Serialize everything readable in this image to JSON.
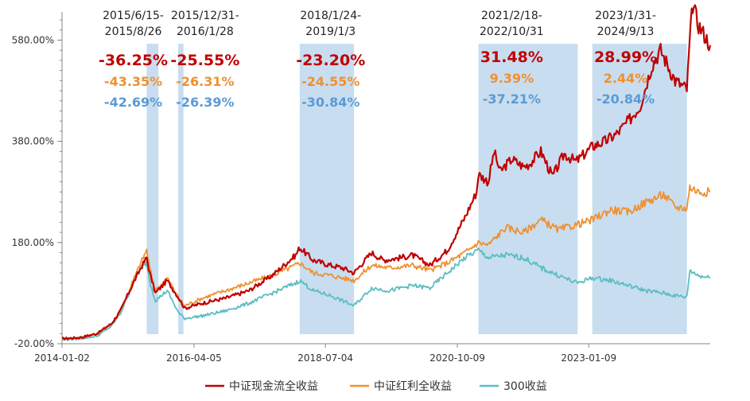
{
  "chart_data": {
    "type": "line",
    "title": "",
    "xlabel": "",
    "ylabel": "",
    "ylim": [
      -20,
      620
    ],
    "y_ticks": [
      {
        "value": -20,
        "label": "-20.00%"
      },
      {
        "value": 180,
        "label": "180.00%"
      },
      {
        "value": 380,
        "label": "380.00%"
      },
      {
        "value": 580,
        "label": "580.00%"
      }
    ],
    "x_range": [
      2014.0,
      2025.1
    ],
    "x_ticks": [
      {
        "value": 2014.0,
        "label": "2014-01-02"
      },
      {
        "value": 2016.26,
        "label": "2016-04-05"
      },
      {
        "value": 2018.51,
        "label": "2018-07-04"
      },
      {
        "value": 2020.77,
        "label": "2020-10-09"
      },
      {
        "value": 2023.02,
        "label": "2023-01-09"
      }
    ],
    "colors": {
      "red": "#C00000",
      "orange": "#F0902E",
      "teal": "#5BBDC2",
      "band": "#C8DDF0",
      "blue_text": "#5B9BD5"
    },
    "legend_position": "bottom",
    "series": [
      {
        "name": "中证现金流全收益",
        "color": "#C00000",
        "points": [
          [
            2014.0,
            -10
          ],
          [
            2014.3,
            -8
          ],
          [
            2014.6,
            0
          ],
          [
            2014.85,
            20
          ],
          [
            2015.0,
            45
          ],
          [
            2015.2,
            95
          ],
          [
            2015.35,
            130
          ],
          [
            2015.45,
            150
          ],
          [
            2015.5,
            120
          ],
          [
            2015.6,
            80
          ],
          [
            2015.8,
            105
          ],
          [
            2016.0,
            70
          ],
          [
            2016.1,
            50
          ],
          [
            2016.4,
            60
          ],
          [
            2016.8,
            70
          ],
          [
            2017.2,
            85
          ],
          [
            2017.6,
            115
          ],
          [
            2018.0,
            155
          ],
          [
            2018.07,
            170
          ],
          [
            2018.3,
            145
          ],
          [
            2018.6,
            135
          ],
          [
            2018.8,
            130
          ],
          [
            2019.0,
            120
          ],
          [
            2019.3,
            160
          ],
          [
            2019.5,
            145
          ],
          [
            2019.8,
            150
          ],
          [
            2020.0,
            155
          ],
          [
            2020.3,
            135
          ],
          [
            2020.6,
            165
          ],
          [
            2020.9,
            230
          ],
          [
            2021.1,
            280
          ],
          [
            2021.13,
            315
          ],
          [
            2021.3,
            300
          ],
          [
            2021.4,
            360
          ],
          [
            2021.5,
            320
          ],
          [
            2021.7,
            345
          ],
          [
            2021.9,
            330
          ],
          [
            2022.0,
            335
          ],
          [
            2022.2,
            360
          ],
          [
            2022.4,
            310
          ],
          [
            2022.6,
            355
          ],
          [
            2022.8,
            340
          ],
          [
            2022.9,
            350
          ],
          [
            2023.08,
            370
          ],
          [
            2023.3,
            380
          ],
          [
            2023.5,
            395
          ],
          [
            2023.7,
            420
          ],
          [
            2023.9,
            450
          ],
          [
            2024.1,
            530
          ],
          [
            2024.25,
            560
          ],
          [
            2024.5,
            500
          ],
          [
            2024.7,
            483
          ],
          [
            2024.75,
            580
          ],
          [
            2024.8,
            650
          ],
          [
            2024.9,
            610
          ],
          [
            2025.0,
            590
          ],
          [
            2025.1,
            570
          ]
        ]
      },
      {
        "name": "中证红利全收益",
        "color": "#F0902E",
        "points": [
          [
            2014.0,
            -10
          ],
          [
            2014.3,
            -8
          ],
          [
            2014.6,
            0
          ],
          [
            2014.85,
            20
          ],
          [
            2015.0,
            45
          ],
          [
            2015.2,
            100
          ],
          [
            2015.35,
            140
          ],
          [
            2015.45,
            165
          ],
          [
            2015.5,
            130
          ],
          [
            2015.6,
            85
          ],
          [
            2015.8,
            110
          ],
          [
            2016.0,
            70
          ],
          [
            2016.1,
            55
          ],
          [
            2016.4,
            70
          ],
          [
            2016.8,
            85
          ],
          [
            2017.2,
            100
          ],
          [
            2017.6,
            115
          ],
          [
            2018.0,
            135
          ],
          [
            2018.07,
            140
          ],
          [
            2018.3,
            120
          ],
          [
            2018.6,
            115
          ],
          [
            2018.8,
            110
          ],
          [
            2019.0,
            105
          ],
          [
            2019.3,
            135
          ],
          [
            2019.6,
            130
          ],
          [
            2020.0,
            135
          ],
          [
            2020.3,
            125
          ],
          [
            2020.6,
            140
          ],
          [
            2020.9,
            160
          ],
          [
            2021.13,
            180
          ],
          [
            2021.3,
            175
          ],
          [
            2021.6,
            210
          ],
          [
            2021.9,
            200
          ],
          [
            2022.2,
            225
          ],
          [
            2022.5,
            205
          ],
          [
            2022.81,
            215
          ],
          [
            2023.08,
            225
          ],
          [
            2023.4,
            245
          ],
          [
            2023.7,
            240
          ],
          [
            2024.0,
            260
          ],
          [
            2024.3,
            275
          ],
          [
            2024.5,
            250
          ],
          [
            2024.7,
            248
          ],
          [
            2024.75,
            290
          ],
          [
            2024.9,
            280
          ],
          [
            2025.1,
            280
          ]
        ]
      },
      {
        "name": "300收益",
        "color": "#5BBDC2",
        "points": [
          [
            2014.0,
            -12
          ],
          [
            2014.3,
            -10
          ],
          [
            2014.6,
            -5
          ],
          [
            2014.85,
            15
          ],
          [
            2015.0,
            40
          ],
          [
            2015.2,
            95
          ],
          [
            2015.35,
            130
          ],
          [
            2015.45,
            140
          ],
          [
            2015.5,
            105
          ],
          [
            2015.6,
            65
          ],
          [
            2015.8,
            85
          ],
          [
            2016.0,
            40
          ],
          [
            2016.1,
            30
          ],
          [
            2016.4,
            35
          ],
          [
            2016.8,
            45
          ],
          [
            2017.2,
            60
          ],
          [
            2017.6,
            80
          ],
          [
            2018.0,
            100
          ],
          [
            2018.07,
            105
          ],
          [
            2018.3,
            85
          ],
          [
            2018.6,
            75
          ],
          [
            2018.8,
            65
          ],
          [
            2019.0,
            55
          ],
          [
            2019.3,
            90
          ],
          [
            2019.6,
            85
          ],
          [
            2020.0,
            95
          ],
          [
            2020.3,
            90
          ],
          [
            2020.6,
            120
          ],
          [
            2020.9,
            150
          ],
          [
            2021.13,
            165
          ],
          [
            2021.3,
            150
          ],
          [
            2021.6,
            155
          ],
          [
            2021.9,
            150
          ],
          [
            2022.2,
            130
          ],
          [
            2022.5,
            115
          ],
          [
            2022.81,
            100
          ],
          [
            2023.08,
            110
          ],
          [
            2023.4,
            105
          ],
          [
            2023.7,
            95
          ],
          [
            2024.0,
            85
          ],
          [
            2024.3,
            80
          ],
          [
            2024.5,
            75
          ],
          [
            2024.7,
            72
          ],
          [
            2024.75,
            125
          ],
          [
            2024.9,
            115
          ],
          [
            2025.1,
            110
          ]
        ]
      }
    ],
    "bands": [
      {
        "x0": 2015.45,
        "x1": 2015.65,
        "label": [
          "2015/6/15-",
          "2015/8/26"
        ],
        "values": [
          "-36.25%",
          "-43.35%",
          "-42.69%"
        ],
        "anchor": 2015.22
      },
      {
        "x0": 2015.99,
        "x1": 2016.08,
        "label": [
          "2015/12/31-",
          "2016/1/28"
        ],
        "values": [
          "-25.55%",
          "-26.31%",
          "-26.39%"
        ],
        "anchor": 2016.45
      },
      {
        "x0": 2018.07,
        "x1": 2019.0,
        "label": [
          "2018/1/24-",
          "2019/1/3"
        ],
        "values": [
          "-23.20%",
          "-24.55%",
          "-30.84%"
        ],
        "anchor": 2018.6
      },
      {
        "x0": 2021.13,
        "x1": 2022.83,
        "label": [
          "2021/2/18-",
          "2022/10/31"
        ],
        "values": [
          "31.48%",
          "9.39%",
          "-37.21%"
        ],
        "anchor": 2021.7
      },
      {
        "x0": 2023.08,
        "x1": 2024.7,
        "label": [
          "2023/1/31-",
          "2024/9/13"
        ],
        "values": [
          "28.99%",
          "2.44%",
          "-20.84%"
        ],
        "anchor": 2023.65
      }
    ],
    "legend": [
      "中证现金流全收益",
      "中证红利全收益",
      "300收益"
    ]
  }
}
